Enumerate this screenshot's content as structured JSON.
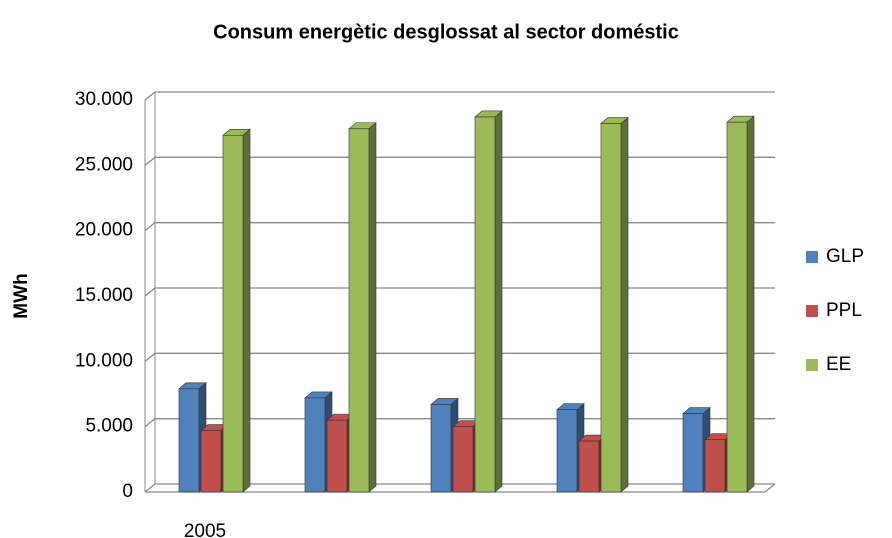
{
  "chart_data": {
    "type": "bar",
    "title": "Consum energètic desglossat al sector doméstic",
    "y_label": "MWh",
    "categories": [
      "2005",
      null,
      null,
      null,
      null
    ],
    "series": [
      {
        "name": "GLP",
        "color": "#4f81bd",
        "values": [
          7900,
          7200,
          6700,
          6300,
          6000
        ]
      },
      {
        "name": "PPL",
        "color": "#c0504d",
        "values": [
          4700,
          5500,
          5000,
          3900,
          4000
        ]
      },
      {
        "name": "EE",
        "color": "#9bbb59",
        "values": [
          27300,
          27800,
          28700,
          28200,
          28300
        ]
      }
    ],
    "ylim": [
      0,
      30000
    ],
    "yticks": [
      0,
      {
        "value": 5000,
        "label": "5.000"
      },
      {
        "value": 10000,
        "label": "10.000"
      },
      {
        "value": 15000,
        "label": "15.000"
      },
      {
        "value": 20000,
        "label": "20.000"
      },
      {
        "value": 25000,
        "label": "25.000"
      },
      {
        "value": 30000,
        "label": "30.000"
      }
    ],
    "grid": true,
    "legend": "right"
  }
}
